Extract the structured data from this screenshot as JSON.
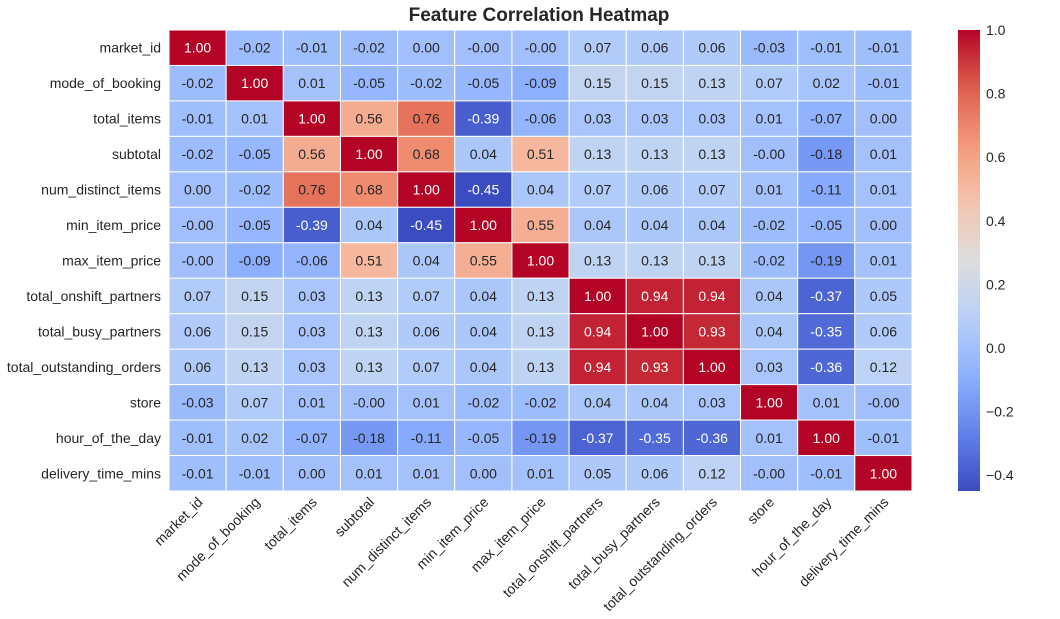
{
  "chart_data": {
    "type": "heatmap",
    "title": "Feature Correlation Heatmap",
    "colormap": "coolwarm",
    "vmin": -0.45,
    "vmax": 1.0,
    "labels": [
      "market_id",
      "mode_of_booking",
      "total_items",
      "subtotal",
      "num_distinct_items",
      "min_item_price",
      "max_item_price",
      "total_onshift_partners",
      "total_busy_partners",
      "total_outstanding_orders",
      "store",
      "hour_of_the_day",
      "delivery_time_mins"
    ],
    "values": [
      [
        1.0,
        -0.02,
        -0.01,
        -0.02,
        0.0,
        -0.0,
        -0.0,
        0.07,
        0.06,
        0.06,
        -0.03,
        -0.01,
        -0.01
      ],
      [
        -0.02,
        1.0,
        0.01,
        -0.05,
        -0.02,
        -0.05,
        -0.09,
        0.15,
        0.15,
        0.13,
        0.07,
        0.02,
        -0.01
      ],
      [
        -0.01,
        0.01,
        1.0,
        0.56,
        0.76,
        -0.39,
        -0.06,
        0.03,
        0.03,
        0.03,
        0.01,
        -0.07,
        0.0
      ],
      [
        -0.02,
        -0.05,
        0.56,
        1.0,
        0.68,
        0.04,
        0.51,
        0.13,
        0.13,
        0.13,
        -0.0,
        -0.18,
        0.01
      ],
      [
        0.0,
        -0.02,
        0.76,
        0.68,
        1.0,
        -0.45,
        0.04,
        0.07,
        0.06,
        0.07,
        0.01,
        -0.11,
        0.01
      ],
      [
        -0.0,
        -0.05,
        -0.39,
        0.04,
        -0.45,
        1.0,
        0.55,
        0.04,
        0.04,
        0.04,
        -0.02,
        -0.05,
        0.0
      ],
      [
        -0.0,
        -0.09,
        -0.06,
        0.51,
        0.04,
        0.55,
        1.0,
        0.13,
        0.13,
        0.13,
        -0.02,
        -0.19,
        0.01
      ],
      [
        0.07,
        0.15,
        0.03,
        0.13,
        0.07,
        0.04,
        0.13,
        1.0,
        0.94,
        0.94,
        0.04,
        -0.37,
        0.05
      ],
      [
        0.06,
        0.15,
        0.03,
        0.13,
        0.06,
        0.04,
        0.13,
        0.94,
        1.0,
        0.93,
        0.04,
        -0.35,
        0.06
      ],
      [
        0.06,
        0.13,
        0.03,
        0.13,
        0.07,
        0.04,
        0.13,
        0.94,
        0.93,
        1.0,
        0.03,
        -0.36,
        0.12
      ],
      [
        -0.03,
        0.07,
        0.01,
        -0.0,
        0.01,
        -0.02,
        -0.02,
        0.04,
        0.04,
        0.03,
        1.0,
        0.01,
        -0.0
      ],
      [
        -0.01,
        0.02,
        -0.07,
        -0.18,
        -0.11,
        -0.05,
        -0.19,
        -0.37,
        -0.35,
        -0.36,
        0.01,
        1.0,
        -0.01
      ],
      [
        -0.01,
        -0.01,
        0.0,
        0.01,
        0.01,
        0.0,
        0.01,
        0.05,
        0.06,
        0.12,
        -0.0,
        -0.01,
        1.0
      ]
    ],
    "colorbar_ticks": [
      "1.0",
      "0.8",
      "0.6",
      "0.4",
      "0.2",
      "0.0",
      "−0.2",
      "−0.4"
    ],
    "colorbar_tick_values": [
      1.0,
      0.8,
      0.6,
      0.4,
      0.2,
      0.0,
      -0.2,
      -0.4
    ],
    "xlabel": "",
    "ylabel": ""
  }
}
